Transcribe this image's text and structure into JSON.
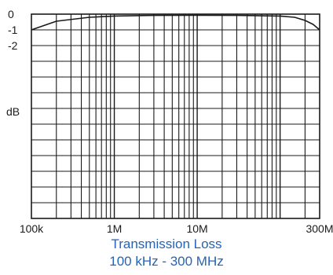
{
  "chart_data": {
    "type": "line",
    "title": "Transmission Loss",
    "subtitle": "100 kHz - 300 MHz",
    "xlabel": "",
    "ylabel": "dB",
    "x_scale": "log",
    "xlim": [
      100000,
      300000000
    ],
    "ylim": [
      -13,
      0
    ],
    "grid": true,
    "x_ticks": [
      {
        "value": 100000,
        "label": "100k"
      },
      {
        "value": 1000000,
        "label": "1M"
      },
      {
        "value": 10000000,
        "label": "10M"
      },
      {
        "value": 300000000,
        "label": "300M"
      }
    ],
    "y_ticks": [
      {
        "value": 0,
        "label": "0"
      },
      {
        "value": -1,
        "label": "-1"
      },
      {
        "value": -2,
        "label": "-2"
      }
    ],
    "series": [
      {
        "x": [
          100000,
          200000,
          500000,
          1000000,
          3000000,
          10000000,
          30000000,
          100000000,
          150000000,
          200000000,
          250000000,
          300000000
        ],
        "y": [
          -1.0,
          -0.45,
          -0.2,
          -0.12,
          -0.08,
          -0.07,
          -0.08,
          -0.12,
          -0.2,
          -0.4,
          -0.65,
          -1.0
        ],
        "color": "#1a1a1a"
      }
    ]
  }
}
